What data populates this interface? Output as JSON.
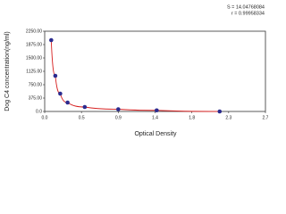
{
  "chart_data": {
    "type": "scatter",
    "annotations": [
      "S = 14.04768084",
      "r = 0.99958334"
    ],
    "x_label": "Optical Density",
    "y_label": "Dog C4 concentration(ng/ml)",
    "x": [
      0.08,
      0.13,
      0.19,
      0.28,
      0.49,
      0.9,
      1.37,
      2.14
    ],
    "values": [
      2000,
      1000,
      500,
      250,
      125,
      62.5,
      31.25,
      0
    ],
    "color": "#2b2b8f",
    "line_color": "#d62020",
    "xlim": [
      0,
      2.7
    ],
    "xticks": [
      {
        "value": 0,
        "label": "0.0"
      },
      {
        "value": 0.45,
        "label": "0.5"
      },
      0.9,
      {
        "value": 1.35,
        "label": "1.4"
      },
      1.8,
      {
        "value": 2.25,
        "label": "2.3"
      },
      2.7
    ],
    "ylim": [
      0,
      2250
    ],
    "yticks": [
      {
        "value": 0,
        "label": "0.0"
      },
      {
        "value": 375,
        "label": "375.00"
      },
      {
        "value": 750,
        "label": "750.00"
      },
      {
        "value": 1125,
        "label": "1125.00"
      },
      {
        "value": 1500,
        "label": "1500.00"
      },
      {
        "value": 1875,
        "label": "1875.00"
      },
      {
        "value": 2250,
        "label": "2250.00"
      }
    ]
  }
}
